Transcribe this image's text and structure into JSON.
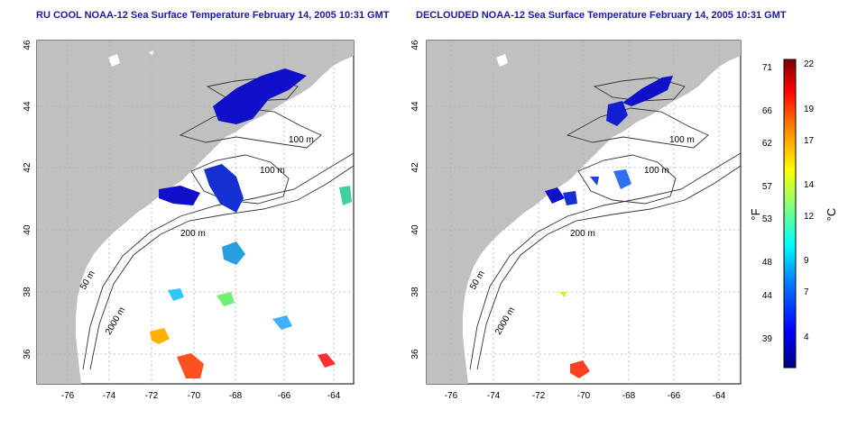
{
  "left_panel": {
    "title": "RU COOL NOAA-12 Sea Surface Temperature February 14, 2005 10:31 GMT",
    "x_ticks": [
      "-76",
      "-74",
      "-72",
      "-70",
      "-68",
      "-66",
      "-64"
    ],
    "y_ticks": [
      "36",
      "38",
      "40",
      "42",
      "44",
      "46"
    ],
    "contour_labels": [
      "100 m",
      "100 m",
      "200 m",
      "50 m",
      "2000 m",
      "2000 m"
    ]
  },
  "right_panel": {
    "title": "DECLOUDED NOAA-12 Sea Surface Temperature February 14, 2005 10:31 GMT",
    "x_ticks": [
      "-76",
      "-74",
      "-72",
      "-70",
      "-68",
      "-66",
      "-64"
    ],
    "y_ticks": [
      "36",
      "38",
      "40",
      "42",
      "44",
      "46"
    ],
    "contour_labels": [
      "100 m",
      "100 m",
      "200 m",
      "50 m",
      "2000 m",
      "2000 m"
    ]
  },
  "colorbar": {
    "fahrenheit_ticks": [
      "71",
      "66",
      "62",
      "57",
      "53",
      "48",
      "44",
      "39"
    ],
    "celsius_ticks": [
      "22",
      "19",
      "17",
      "14",
      "12",
      "9",
      "7",
      "4"
    ],
    "fahrenheit_unit": "°F",
    "celsius_unit": "°C",
    "colors": [
      "#000080",
      "#0000ff",
      "#0080ff",
      "#00ffff",
      "#80ff80",
      "#ffff00",
      "#ff8000",
      "#ff0000",
      "#800000"
    ]
  },
  "colors": {
    "land": "#c0c0c0",
    "ocean": "#ffffff",
    "title": "#1a1aa6",
    "grid": "#b0b0b0",
    "contour": "#333333"
  }
}
